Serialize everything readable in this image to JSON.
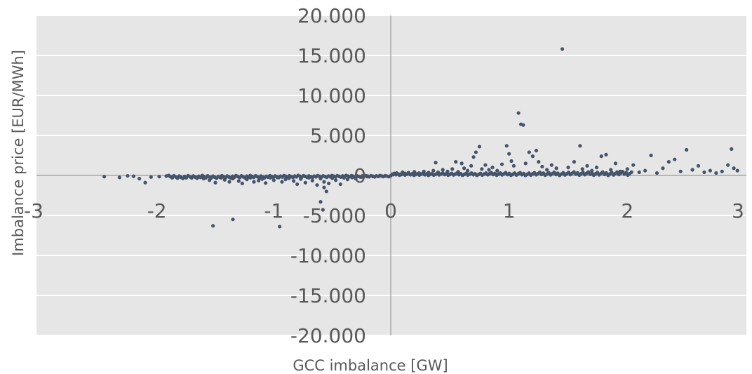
{
  "chart_data": {
    "type": "scatter",
    "title": "",
    "xlabel": "GCC imbalance [GW]",
    "ylabel": "Imbalance price [EUR/MWh]",
    "xlim": [
      -3,
      3
    ],
    "ylim": [
      -20000,
      20000
    ],
    "x_ticks": [
      -3,
      -2,
      -1,
      0,
      1,
      2,
      3
    ],
    "x_tick_labels": [
      "-3",
      "-2",
      "-1",
      "0",
      "1",
      "2",
      "3"
    ],
    "y_ticks": [
      20000,
      15000,
      10000,
      5000,
      0,
      -5000,
      -10000,
      -15000,
      -20000
    ],
    "y_tick_labels": [
      "20.000",
      "15.000",
      "10.000",
      "5.000",
      "0",
      "-5.000",
      "-10.000",
      "-15.000",
      "-20.000"
    ],
    "grid": "horizontal",
    "legend": "none",
    "colors": {
      "points": "#44546A",
      "plot_background": "#E7E6E6",
      "gridline": "#FFFFFF",
      "axis_line": "#A6A6A6",
      "text": "#595959"
    },
    "series": [
      {
        "values_note": "",
        "points": [
          [
            -2.45,
            -150
          ],
          [
            -2.32,
            -250
          ],
          [
            -2.25,
            -50
          ],
          [
            -2.2,
            -100
          ],
          [
            -2.15,
            -400
          ],
          [
            -2.1,
            -900
          ],
          [
            -2.05,
            -200
          ],
          [
            -1.98,
            -150
          ],
          [
            -1.92,
            -80
          ],
          [
            -1.86,
            -120
          ],
          [
            -1.8,
            -200
          ],
          [
            -1.75,
            -300
          ],
          [
            -1.7,
            -180
          ],
          [
            -1.65,
            -250
          ],
          [
            -1.6,
            -400
          ],
          [
            -1.55,
            -600
          ],
          [
            -1.5,
            -900
          ],
          [
            -1.45,
            -300
          ],
          [
            -1.42,
            -550
          ],
          [
            -1.38,
            -800
          ],
          [
            -1.35,
            -400
          ],
          [
            -1.3,
            -700
          ],
          [
            -1.27,
            -1000
          ],
          [
            -1.23,
            -500
          ],
          [
            -1.2,
            -300
          ],
          [
            -1.17,
            -800
          ],
          [
            -1.13,
            -650
          ],
          [
            -1.1,
            -450
          ],
          [
            -1.07,
            -950
          ],
          [
            -1.03,
            -300
          ],
          [
            -1.0,
            -600
          ],
          [
            -0.97,
            -250
          ],
          [
            -0.93,
            -800
          ],
          [
            -0.9,
            -500
          ],
          [
            -0.87,
            -350
          ],
          [
            -0.83,
            -700
          ],
          [
            -0.8,
            -1100
          ],
          [
            -0.77,
            -450
          ],
          [
            -0.73,
            -900
          ],
          [
            -0.7,
            -300
          ],
          [
            -0.67,
            -650
          ],
          [
            -0.63,
            -1200
          ],
          [
            -0.6,
            -400
          ],
          [
            -0.57,
            -800
          ],
          [
            -0.53,
            -1000
          ],
          [
            -0.5,
            -350
          ],
          [
            -0.47,
            -600
          ],
          [
            -0.43,
            -1100
          ],
          [
            -0.4,
            -300
          ],
          [
            -0.37,
            -500
          ],
          [
            -0.33,
            -250
          ],
          [
            -0.3,
            -400
          ],
          [
            -0.25,
            -200
          ],
          [
            -0.2,
            -150
          ],
          [
            -0.15,
            -120
          ],
          [
            -0.1,
            -100
          ],
          [
            -0.05,
            -60
          ],
          [
            -1.52,
            -6300
          ],
          [
            -1.35,
            -5500
          ],
          [
            -0.95,
            -6400
          ],
          [
            -0.6,
            -3300
          ],
          [
            -0.58,
            -4300
          ],
          [
            -0.55,
            -2000
          ],
          [
            -0.57,
            -1500
          ],
          [
            0.02,
            100
          ],
          [
            0.05,
            300
          ],
          [
            0.08,
            150
          ],
          [
            0.1,
            400
          ],
          [
            0.12,
            250
          ],
          [
            0.15,
            350
          ],
          [
            0.18,
            200
          ],
          [
            0.2,
            450
          ],
          [
            0.24,
            300
          ],
          [
            0.28,
            500
          ],
          [
            0.32,
            350
          ],
          [
            0.36,
            600
          ],
          [
            0.38,
            1600
          ],
          [
            0.4,
            400
          ],
          [
            0.44,
            700
          ],
          [
            0.48,
            500
          ],
          [
            0.52,
            800
          ],
          [
            0.55,
            1700
          ],
          [
            0.57,
            450
          ],
          [
            0.6,
            1500
          ],
          [
            0.62,
            900
          ],
          [
            0.65,
            600
          ],
          [
            0.68,
            1200
          ],
          [
            0.7,
            2300
          ],
          [
            0.72,
            2900
          ],
          [
            0.75,
            3600
          ],
          [
            0.77,
            800
          ],
          [
            0.8,
            1300
          ],
          [
            0.83,
            700
          ],
          [
            0.86,
            1000
          ],
          [
            0.9,
            600
          ],
          [
            0.94,
            1400
          ],
          [
            0.98,
            3700
          ],
          [
            1.0,
            2700
          ],
          [
            1.02,
            1800
          ],
          [
            1.04,
            1200
          ],
          [
            1.08,
            7800
          ],
          [
            1.1,
            6400
          ],
          [
            1.12,
            6300
          ],
          [
            1.14,
            1500
          ],
          [
            1.17,
            2900
          ],
          [
            1.2,
            2400
          ],
          [
            1.23,
            3100
          ],
          [
            1.25,
            1700
          ],
          [
            1.28,
            1100
          ],
          [
            1.32,
            700
          ],
          [
            1.36,
            1300
          ],
          [
            1.4,
            900
          ],
          [
            1.45,
            15800
          ],
          [
            1.5,
            1000
          ],
          [
            1.55,
            1700
          ],
          [
            1.6,
            3700
          ],
          [
            1.62,
            800
          ],
          [
            1.66,
            1200
          ],
          [
            1.7,
            600
          ],
          [
            1.74,
            1000
          ],
          [
            1.78,
            2400
          ],
          [
            1.82,
            2600
          ],
          [
            1.86,
            700
          ],
          [
            1.9,
            1500
          ],
          [
            1.94,
            500
          ],
          [
            2.0,
            800
          ],
          [
            2.05,
            1300
          ],
          [
            2.1,
            400
          ],
          [
            2.15,
            600
          ],
          [
            2.2,
            2500
          ],
          [
            2.25,
            300
          ],
          [
            2.3,
            900
          ],
          [
            2.35,
            1700
          ],
          [
            2.4,
            2000
          ],
          [
            2.45,
            500
          ],
          [
            2.5,
            3200
          ],
          [
            2.55,
            700
          ],
          [
            2.6,
            1200
          ],
          [
            2.65,
            400
          ],
          [
            2.7,
            600
          ],
          [
            2.75,
            300
          ],
          [
            2.8,
            500
          ],
          [
            2.85,
            1300
          ],
          [
            2.88,
            3300
          ],
          [
            2.9,
            900
          ],
          [
            2.93,
            600
          ]
        ]
      }
    ]
  }
}
